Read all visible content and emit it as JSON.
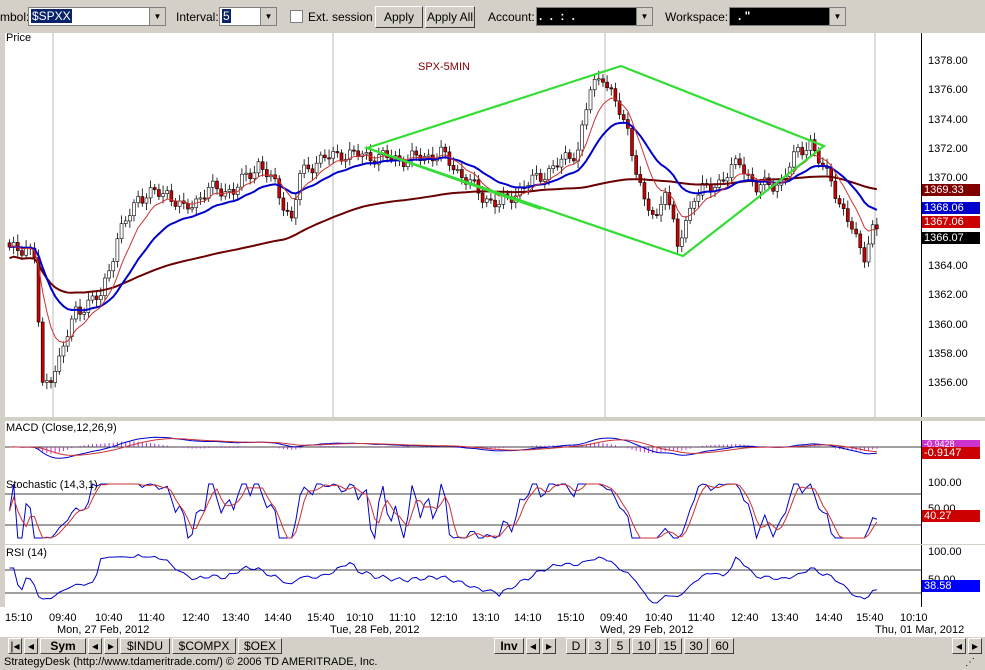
{
  "toolbar": {
    "symbol_label": "mbol:",
    "symbol_value": "$SPXX",
    "interval_label": "Interval:",
    "interval_value": "5",
    "ext_session_label": "Ext. session",
    "apply_label": "Apply",
    "apply_all_label": "Apply All",
    "account_label": "Account:",
    "account_value": ".    .    :    .",
    "workspace_label": "Workspace:",
    "workspace_value": ".   \""
  },
  "price_panel": {
    "title": "Price",
    "chart_label": "SPX-5MIN",
    "y_ticks": [
      "1378.00",
      "1376.00",
      "1374.00",
      "1372.00",
      "1370.00",
      "1368.00",
      "1366.00",
      "1364.00",
      "1362.00",
      "1360.00",
      "1358.00",
      "1356.00"
    ],
    "tags": [
      {
        "text": "1369.33",
        "bg": "#800000",
        "fg": "#ffffff"
      },
      {
        "text": "1368.06",
        "bg": "#0000cc",
        "fg": "#ffffff"
      },
      {
        "text": "1367.06",
        "bg": "#cc0000",
        "fg": "#ffffff"
      },
      {
        "text": "1366.07",
        "bg": "#000000",
        "fg": "#ffffff"
      }
    ]
  },
  "macd_panel": {
    "title": "MACD (Close,12,26,9)",
    "tag_top": "-0.9428",
    "tag": "-0.9147"
  },
  "stoch_panel": {
    "title": "Stochastic (14,3,1)",
    "y_ticks": [
      "100.00",
      "50.00"
    ],
    "tag": "40.27"
  },
  "rsi_panel": {
    "title": "RSI (14)",
    "y_ticks": [
      "100.00",
      "50.00"
    ],
    "tag": "38.58"
  },
  "time_axis": {
    "times": [
      "15:10",
      "09:40",
      "10:40",
      "11:40",
      "12:40",
      "13:40",
      "14:40",
      "15:40",
      "10:10",
      "11:10",
      "12:10",
      "13:10",
      "14:10",
      "15:10",
      "09:40",
      "10:40",
      "11:40",
      "12:40",
      "13:40",
      "14:40",
      "15:40",
      "10:10"
    ],
    "dates": [
      "Mon, 27 Feb, 2012",
      "Tue, 28 Feb, 2012",
      "Wed, 29 Feb, 2012",
      "Thu, 01 Mar, 2012"
    ]
  },
  "tabs": {
    "left": [
      "Sym",
      "$INDU",
      "$COMPX",
      "$OEX"
    ],
    "inv": "Inv",
    "right": [
      "D",
      "3",
      "5",
      "10",
      "15",
      "30",
      "60"
    ]
  },
  "status": "StrategyDesk (http://www.tdameritrade.com/) © 2006 TD AMERITRADE, Inc.",
  "colors": {
    "pattern": "#33dd33",
    "ema_fast": "#cc3333",
    "ema_mid": "#0000cc",
    "sma_long": "#6b0000",
    "up_candle": "#ffffff",
    "down_candle": "#cc0000"
  },
  "chart_data": {
    "type": "candlestick",
    "title": "SPX-5MIN",
    "ylim": [
      1354.5,
      1379.5
    ],
    "x_anchors": [
      {
        "t": 0,
        "price": 1365.2
      },
      {
        "t": 4,
        "price": 1365.5
      },
      {
        "t": 6,
        "price": 1364.8
      },
      {
        "t": 8,
        "price": 1355.5
      },
      {
        "t": 12,
        "price": 1357.5
      },
      {
        "t": 16,
        "price": 1361
      },
      {
        "t": 22,
        "price": 1362
      },
      {
        "t": 26,
        "price": 1366
      },
      {
        "t": 31,
        "price": 1369
      },
      {
        "t": 38,
        "price": 1369.3
      },
      {
        "t": 42,
        "price": 1368
      },
      {
        "t": 48,
        "price": 1369.5
      },
      {
        "t": 54,
        "price": 1369.4
      },
      {
        "t": 60,
        "price": 1371.3
      },
      {
        "t": 64,
        "price": 1369.8
      },
      {
        "t": 68,
        "price": 1367.3
      },
      {
        "t": 70,
        "price": 1370.5
      },
      {
        "t": 74,
        "price": 1371.5
      },
      {
        "t": 80,
        "price": 1372
      },
      {
        "t": 88,
        "price": 1371.8
      },
      {
        "t": 96,
        "price": 1371.6
      },
      {
        "t": 104,
        "price": 1372
      },
      {
        "t": 110,
        "price": 1370.2
      },
      {
        "t": 114,
        "price": 1369
      },
      {
        "t": 118,
        "price": 1368.4
      },
      {
        "t": 124,
        "price": 1369.7
      },
      {
        "t": 132,
        "price": 1371.2
      },
      {
        "t": 137,
        "price": 1372.3
      },
      {
        "t": 140,
        "price": 1376.5
      },
      {
        "t": 143,
        "price": 1377.6
      },
      {
        "t": 146,
        "price": 1375.5
      },
      {
        "t": 149,
        "price": 1373.6
      },
      {
        "t": 153,
        "price": 1368.4
      },
      {
        "t": 156,
        "price": 1367.5
      },
      {
        "t": 158,
        "price": 1369.8
      },
      {
        "t": 161,
        "price": 1365.4
      },
      {
        "t": 165,
        "price": 1369.1
      },
      {
        "t": 170,
        "price": 1369.8
      },
      {
        "t": 176,
        "price": 1371.4
      },
      {
        "t": 180,
        "price": 1369.6
      },
      {
        "t": 186,
        "price": 1370
      },
      {
        "t": 190,
        "price": 1372.2
      },
      {
        "t": 193,
        "price": 1372.8
      },
      {
        "t": 196,
        "price": 1370.8
      },
      {
        "t": 198,
        "price": 1370.4
      },
      {
        "t": 200,
        "price": 1368.4
      },
      {
        "t": 202,
        "price": 1367.3
      },
      {
        "t": 204,
        "price": 1366
      },
      {
        "t": 206,
        "price": 1365
      },
      {
        "t": 208,
        "price": 1366.6
      }
    ]
  }
}
